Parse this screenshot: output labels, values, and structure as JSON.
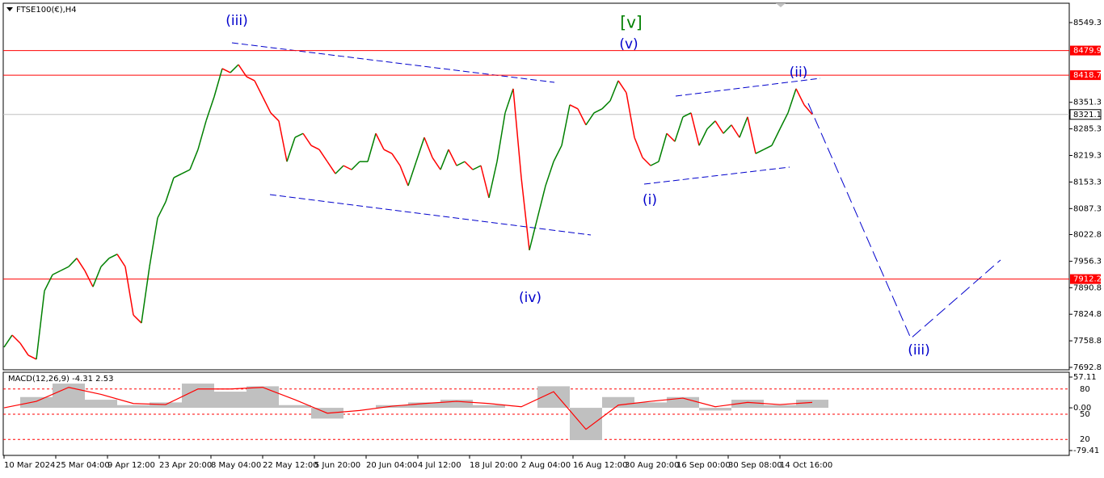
{
  "chart_data": {
    "type": "line",
    "title": "FTSE100(€),H4",
    "ylim": [
      7686.8,
      8597.4
    ],
    "yticks": [
      8549.3,
      8351.3,
      8285.3,
      8219.3,
      8153.3,
      8087.3,
      8022.8,
      7956.3,
      7890.8,
      7824.8,
      7758.8,
      7692.8
    ],
    "levels": [
      {
        "value": 8479.9,
        "color": "#ff0000"
      },
      {
        "value": 8418.7,
        "color": "#ff0000"
      },
      {
        "value": 7912.2,
        "color": "#ff0000"
      }
    ],
    "current_price": 8321.1,
    "up_color": "#008000",
    "down_color": "#ff0000",
    "values": [
      7743,
      7773,
      7753,
      7723,
      7713,
      7883,
      7923,
      7933,
      7943,
      7964,
      7933,
      7893,
      7943,
      7964,
      7974,
      7943,
      7823,
      7803,
      7943,
      8064,
      8104,
      8164,
      8174,
      8184,
      8234,
      8305,
      8365,
      8435,
      8425,
      8445,
      8415,
      8405,
      8365,
      8325,
      8305,
      8204,
      8264,
      8274,
      8244,
      8234,
      8204,
      8174,
      8194,
      8184,
      8204,
      8204,
      8274,
      8234,
      8224,
      8194,
      8144,
      8204,
      8264,
      8214,
      8184,
      8234,
      8194,
      8204,
      8184,
      8194,
      8114,
      8204,
      8325,
      8385,
      8164,
      7984,
      8064,
      8144,
      8204,
      8244,
      8345,
      8335,
      8295,
      8325,
      8335,
      8355,
      8405,
      8375,
      8264,
      8214,
      8194,
      8204,
      8274,
      8254,
      8315,
      8325,
      8244,
      8285,
      8305,
      8274,
      8295,
      8264,
      8315,
      8224,
      8234,
      8244,
      8285,
      8325,
      8385,
      8345,
      8321.1
    ],
    "xlabels": [
      "10 Mar 2024",
      "25 Mar 04:00",
      "9 Apr 12:00",
      "23 Apr 20:00",
      "8 May 04:00",
      "22 May 12:00",
      "5 Jun 20:00",
      "20 Jun 04:00",
      "4 Jul 12:00",
      "18 Jul 20:00",
      "2 Aug 04:00",
      "16 Aug 12:00",
      "30 Aug 20:00",
      "16 Sep 00:00",
      "30 Sep 08:00",
      "14 Oct 16:00"
    ],
    "wave_labels": [
      {
        "text": "(iii)",
        "color": "#0000cc"
      },
      {
        "text": "[v]",
        "color": "#008000"
      },
      {
        "text": "(v)",
        "color": "#0000cc"
      },
      {
        "text": "(ii)",
        "color": "#0000cc"
      },
      {
        "text": "(i)",
        "color": "#0000cc"
      },
      {
        "text": "(iv)",
        "color": "#0000cc"
      },
      {
        "text": "(iii)",
        "color": "#0000cc"
      }
    ],
    "macd": {
      "title": "MACD(12,26,9) -4.31 2.53",
      "ylim": [
        -79.41,
        57.11
      ],
      "yticks": [
        57.11,
        {
          "value": 0,
          "label": "0.00"
        },
        -79.41
      ],
      "y2lim": [
        0,
        100
      ],
      "y2ticks": [
        80,
        50,
        20
      ],
      "histogram": {
        "color": "#c0c0c0",
        "values": [
          0,
          20,
          45,
          15,
          5,
          10,
          45,
          30,
          40,
          5,
          -20,
          0,
          5,
          10,
          15,
          5,
          0,
          40,
          -60,
          20,
          10,
          20,
          -5,
          15,
          5,
          15
        ]
      },
      "signal": {
        "color": "#ff0000",
        "values": [
          0,
          12,
          38,
          25,
          8,
          6,
          35,
          35,
          38,
          15,
          -10,
          -5,
          3,
          8,
          12,
          8,
          2,
          30,
          -40,
          5,
          12,
          18,
          2,
          10,
          6,
          10
        ]
      }
    }
  }
}
